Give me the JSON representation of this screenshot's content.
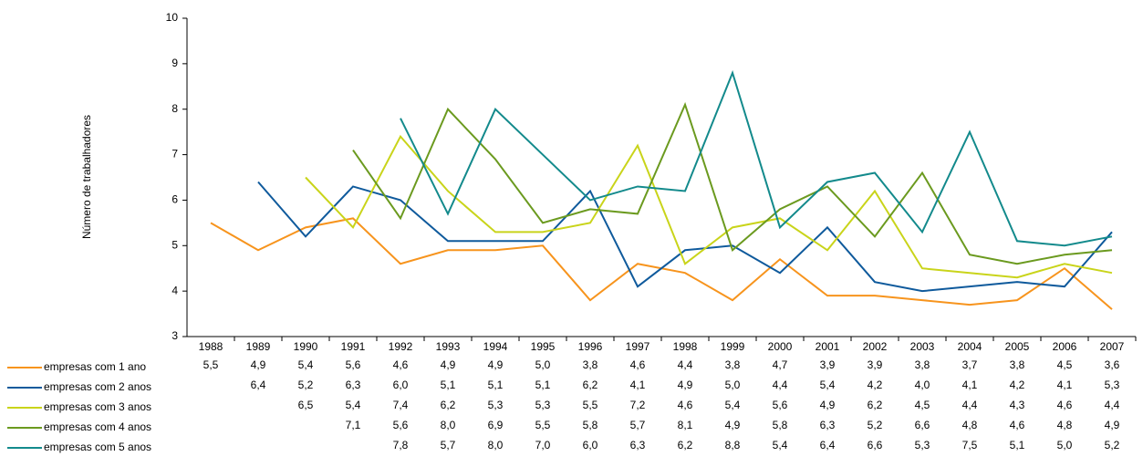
{
  "chart_data": {
    "type": "line",
    "y_label": "Número de trabalhadores",
    "categories": [
      "1988",
      "1989",
      "1990",
      "1991",
      "1992",
      "1993",
      "1994",
      "1995",
      "1996",
      "1997",
      "1998",
      "1999",
      "2000",
      "2001",
      "2002",
      "2003",
      "2004",
      "2005",
      "2006",
      "2007"
    ],
    "ylim": [
      3,
      10
    ],
    "yticks": [
      3,
      4,
      5,
      6,
      7,
      8,
      9,
      10
    ],
    "series": [
      {
        "name": "empresas com 1 ano",
        "color": "#f7941d",
        "values": [
          5.5,
          4.9,
          5.4,
          5.6,
          4.6,
          4.9,
          4.9,
          5.0,
          3.8,
          4.6,
          4.4,
          3.8,
          4.7,
          3.9,
          3.9,
          3.8,
          3.7,
          3.8,
          4.5,
          3.6
        ],
        "value_labels": [
          "5,5",
          "4,9",
          "5,4",
          "5,6",
          "4,6",
          "4,9",
          "4,9",
          "5,0",
          "3,8",
          "4,6",
          "4,4",
          "3,8",
          "4,7",
          "3,9",
          "3,9",
          "3,8",
          "3,7",
          "3,8",
          "4,5",
          "3,6"
        ]
      },
      {
        "name": "empresas com 2 anos",
        "color": "#0f5a9c",
        "values": [
          null,
          6.4,
          5.2,
          6.3,
          6.0,
          5.1,
          5.1,
          5.1,
          6.2,
          4.1,
          4.9,
          5.0,
          4.4,
          5.4,
          4.2,
          4.0,
          4.1,
          4.2,
          4.1,
          5.3
        ],
        "value_labels": [
          null,
          "6,4",
          "5,2",
          "6,3",
          "6,0",
          "5,1",
          "5,1",
          "5,1",
          "6,2",
          "4,1",
          "4,9",
          "5,0",
          "4,4",
          "5,4",
          "4,2",
          "4,0",
          "4,1",
          "4,2",
          "4,1",
          "5,3"
        ]
      },
      {
        "name": "empresas com 3 anos",
        "color": "#c9d41a",
        "values": [
          null,
          null,
          6.5,
          5.4,
          7.4,
          6.2,
          5.3,
          5.3,
          5.5,
          7.2,
          4.6,
          5.4,
          5.6,
          4.9,
          6.2,
          4.5,
          4.4,
          4.3,
          4.6,
          4.4
        ],
        "value_labels": [
          null,
          null,
          "6,5",
          "5,4",
          "7,4",
          "6,2",
          "5,3",
          "5,3",
          "5,5",
          "7,2",
          "4,6",
          "5,4",
          "5,6",
          "4,9",
          "6,2",
          "4,5",
          "4,4",
          "4,3",
          "4,6",
          "4,4"
        ]
      },
      {
        "name": "empresas com 4 anos",
        "color": "#6b9a1f",
        "values": [
          null,
          null,
          null,
          7.1,
          5.6,
          8.0,
          6.9,
          5.5,
          5.8,
          5.7,
          8.1,
          4.9,
          5.8,
          6.3,
          5.2,
          6.6,
          4.8,
          4.6,
          4.8,
          4.9
        ],
        "value_labels": [
          null,
          null,
          null,
          "7,1",
          "5,6",
          "8,0",
          "6,9",
          "5,5",
          "5,8",
          "5,7",
          "8,1",
          "4,9",
          "5,8",
          "6,3",
          "5,2",
          "6,6",
          "4,8",
          "4,6",
          "4,8",
          "4,9"
        ]
      },
      {
        "name": "empresas com 5 anos",
        "color": "#138a8c",
        "values": [
          null,
          null,
          null,
          null,
          7.8,
          5.7,
          8.0,
          7.0,
          6.0,
          6.3,
          6.2,
          8.8,
          5.4,
          6.4,
          6.6,
          5.3,
          7.5,
          5.1,
          5.0,
          5.2
        ],
        "value_labels": [
          null,
          null,
          null,
          null,
          "7,8",
          "5,7",
          "8,0",
          "7,0",
          "6,0",
          "6,3",
          "6,2",
          "8,8",
          "5,4",
          "6,4",
          "6,6",
          "5,3",
          "7,5",
          "5,1",
          "5,0",
          "5,2"
        ]
      }
    ]
  }
}
